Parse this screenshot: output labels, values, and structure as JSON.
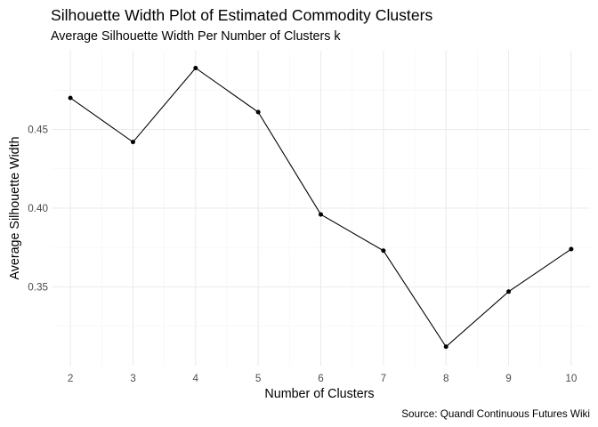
{
  "chart_data": {
    "type": "line",
    "title": "Silhouette Width Plot of Estimated Commodity Clusters",
    "subtitle": "Average Silhouette Width Per Number of Clusters k",
    "xlabel": "Number of Clusters",
    "ylabel": "Average Silhouette Width",
    "caption": "Source: Quandl Continuous Futures Wiki",
    "x": [
      2,
      3,
      4,
      5,
      6,
      7,
      8,
      9,
      10
    ],
    "y": [
      0.47,
      0.442,
      0.489,
      0.461,
      0.396,
      0.373,
      0.312,
      0.347,
      0.374
    ],
    "x_ticks": [
      "2",
      "3",
      "4",
      "5",
      "6",
      "7",
      "8",
      "9",
      "10"
    ],
    "y_ticks": [
      {
        "value": 0.35,
        "label": "0.35"
      },
      {
        "value": 0.4,
        "label": "0.40"
      },
      {
        "value": 0.45,
        "label": "0.45"
      }
    ],
    "xlim": [
      1.7,
      10.3
    ],
    "ylim": [
      0.3,
      0.5
    ],
    "grid": true,
    "line_color": "#000000",
    "point_color": "#000000"
  }
}
